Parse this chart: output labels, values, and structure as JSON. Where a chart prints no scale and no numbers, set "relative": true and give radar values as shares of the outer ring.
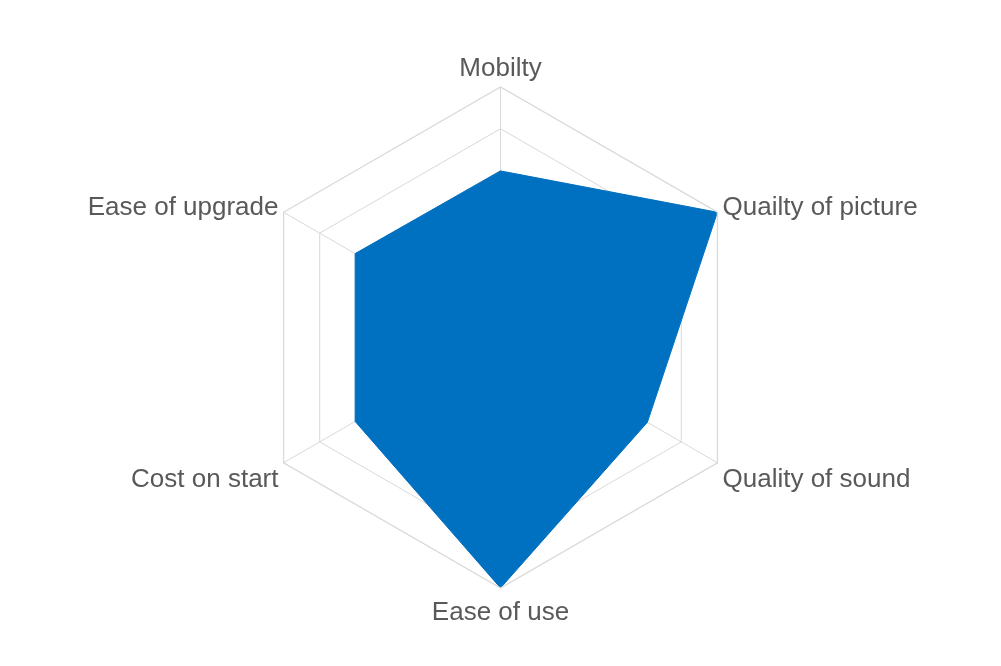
{
  "chart_data": {
    "type": "radar",
    "relative": true,
    "grid": true,
    "categories": [
      "Mobilty",
      "Quailty of picture",
      "Quality of sound",
      "Ease of use",
      "Cost on start",
      "Ease of upgrade"
    ],
    "series": [
      {
        "color": "#0070c0",
        "values": [
          0.665,
          1,
          0.677,
          1,
          0.67,
          0.67
        ]
      }
    ]
  }
}
